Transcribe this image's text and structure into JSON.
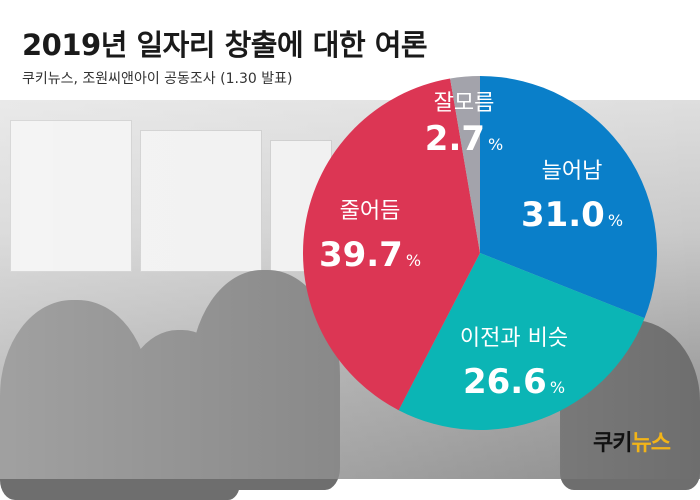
{
  "title": "2019년 일자리 창출에 대한 여론",
  "subtitle": "쿠키뉴스, 조원씨앤아이 공동조사 (1.30 발표)",
  "logo": {
    "part1": "쿠키",
    "part2": "뉴스"
  },
  "colors": {
    "increase": "#0a7fc9",
    "similar": "#0bb5b5",
    "decrease": "#dc3654",
    "unknown": "#a3a3ab"
  },
  "chart_data": {
    "type": "pie",
    "title": "2019년 일자리 창출에 대한 여론",
    "unit": "%",
    "start": "12 o'clock, clockwise",
    "slices": [
      {
        "label": "늘어남",
        "value": 31.0,
        "display": "31.0",
        "color": "#0a7fc9"
      },
      {
        "label": "이전과 비슷",
        "value": 26.6,
        "display": "26.6",
        "color": "#0bb5b5"
      },
      {
        "label": "줄어듬",
        "value": 39.7,
        "display": "39.7",
        "color": "#dc3654"
      },
      {
        "label": "잘모름",
        "value": 2.7,
        "display": "2.7",
        "color": "#a3a3ab"
      }
    ]
  }
}
